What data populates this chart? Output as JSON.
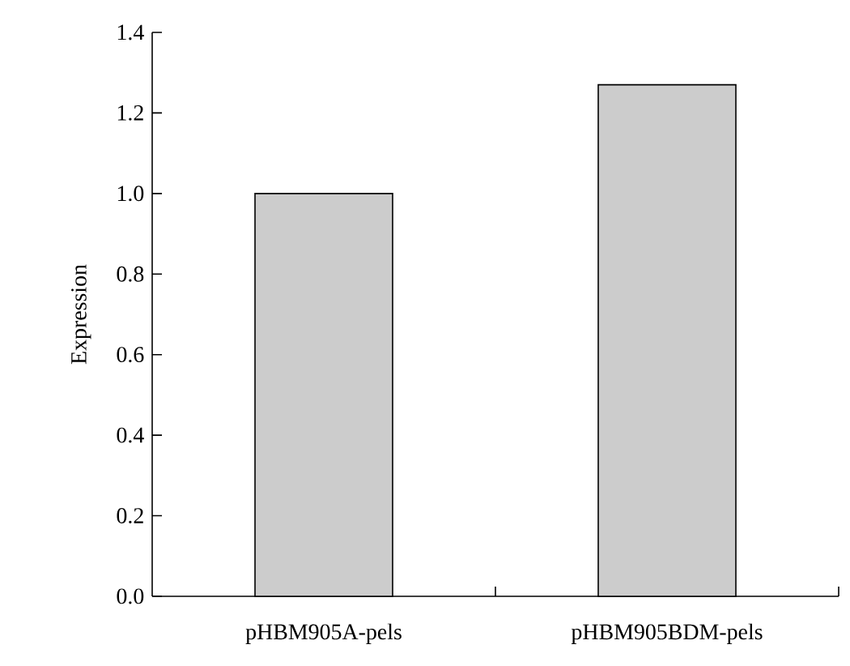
{
  "chart_data": {
    "type": "bar",
    "ylabel": "Expression",
    "categories": [
      "pHBM905A-pels",
      "pHBM905BDM-pels"
    ],
    "values": [
      1.0,
      1.27
    ],
    "color": "#cccccc",
    "ylim": [
      0,
      1.4
    ],
    "yticks": [
      {
        "value": 0,
        "label": "0.0"
      },
      {
        "value": 0.2,
        "label": "0.2"
      },
      {
        "value": 0.4,
        "label": "0.4"
      },
      {
        "value": 0.6,
        "label": "0.6"
      },
      {
        "value": 0.8,
        "label": "0.8"
      },
      {
        "value": 1.0,
        "label": "1.0"
      },
      {
        "value": 1.2,
        "label": "1.2"
      },
      {
        "value": 1.4,
        "label": "1.4"
      }
    ]
  }
}
